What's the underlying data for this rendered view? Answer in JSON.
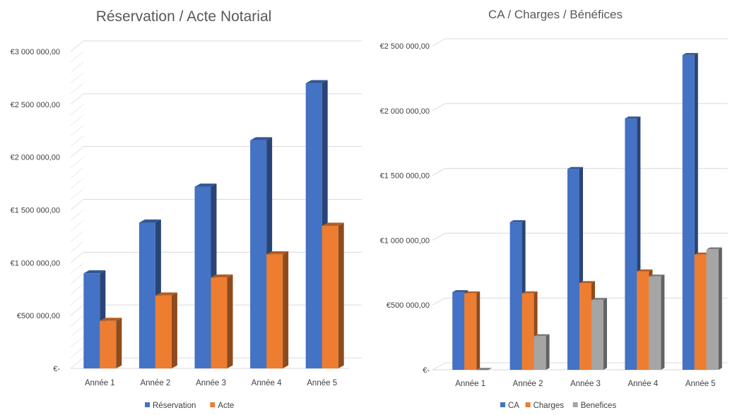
{
  "chart_data": [
    {
      "type": "bar",
      "title": "Réservation / Acte Notarial",
      "categories": [
        "Année 1",
        "Année 2",
        "Année 3",
        "Année 4",
        "Année 5"
      ],
      "series": [
        {
          "name": "Réservation",
          "values": [
            900000,
            1380000,
            1720000,
            2160000,
            2700000
          ],
          "color": "#4472C4"
        },
        {
          "name": "Acte",
          "values": [
            450000,
            690000,
            860000,
            1080000,
            1350000
          ],
          "color": "#ED7D31"
        }
      ],
      "yticks": [
        {
          "value": 0,
          "label": "€-"
        },
        {
          "value": 500000,
          "label": "€500 000,00"
        },
        {
          "value": 1000000,
          "label": "€1 000 000,00"
        },
        {
          "value": 1500000,
          "label": "€1 500 000,00"
        },
        {
          "value": 2000000,
          "label": "€2 000 000,00"
        },
        {
          "value": 2500000,
          "label": "€2 500 000,00"
        },
        {
          "value": 3000000,
          "label": "€3 000 000,00"
        }
      ],
      "ylim": [
        0,
        3000000
      ],
      "grid": true,
      "legend_position": "bottom",
      "style": "3d-clustered-column"
    },
    {
      "type": "bar",
      "title": "CA / Charges / Bénéfices",
      "categories": [
        "Année 1",
        "Année 2",
        "Année 3",
        "Année 4",
        "Année 5"
      ],
      "series": [
        {
          "name": "CA",
          "values": [
            600000,
            1140000,
            1550000,
            1940000,
            2430000
          ],
          "color": "#4472C4"
        },
        {
          "name": "Charges",
          "values": [
            590000,
            590000,
            670000,
            760000,
            890000
          ],
          "color": "#ED7D31"
        },
        {
          "name": "Benefices",
          "values": [
            0,
            260000,
            540000,
            720000,
            930000
          ],
          "color": "#A5A5A5"
        }
      ],
      "yticks": [
        {
          "value": 0,
          "label": "€-"
        },
        {
          "value": 500000,
          "label": "€500 000,00"
        },
        {
          "value": 1000000,
          "label": "€1 000 000,00"
        },
        {
          "value": 1500000,
          "label": "€1 500 000,00"
        },
        {
          "value": 2000000,
          "label": "€2 000 000,00"
        },
        {
          "value": 2500000,
          "label": "€2 500 000,00"
        }
      ],
      "ylim": [
        0,
        2500000
      ],
      "grid": true,
      "legend_position": "bottom",
      "style": "3d-clustered-column"
    }
  ]
}
